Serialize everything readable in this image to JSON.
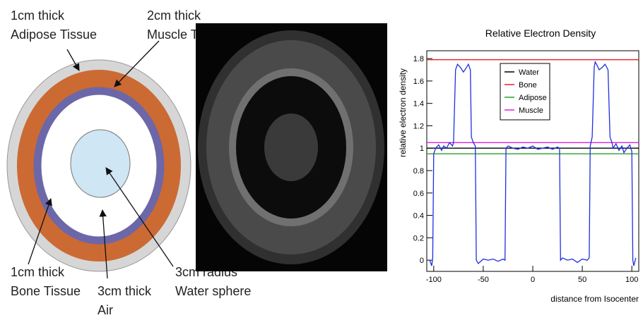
{
  "diagram": {
    "labels": [
      [
        "1cm thick",
        "Adipose Tissue"
      ],
      [
        "2cm thick",
        "Muscle Tissue"
      ],
      [
        "1cm thick",
        "Bone Tissue"
      ],
      [
        "3cm thick",
        "Air"
      ],
      [
        "3cm radius",
        "Water sphere"
      ]
    ]
  },
  "chart_data": {
    "type": "line",
    "title": "Relative Electron Density",
    "x_label": "distance from Isocenter",
    "y_label": "relative electron density",
    "xlim": [
      -107,
      107
    ],
    "ylim": [
      -0.1,
      1.87
    ],
    "xticks": [
      -100,
      -50,
      0,
      50,
      100
    ],
    "yticks": [
      0,
      0.2,
      0.4,
      0.6,
      0.8,
      1,
      1.2,
      1.4,
      1.6,
      1.8
    ],
    "legend": "top-left",
    "series": [
      {
        "name": "Water",
        "color": "#000000",
        "x": [
          -107,
          107
        ],
        "values": [
          1.0,
          1.0
        ]
      },
      {
        "name": "Bone",
        "color": "#e8202a",
        "x": [
          -107,
          107
        ],
        "values": [
          1.79,
          1.79
        ]
      },
      {
        "name": "Adipose",
        "color": "#2ca02c",
        "x": [
          -107,
          107
        ],
        "values": [
          0.95,
          0.95
        ]
      },
      {
        "name": "Muscle",
        "color": "#e020e0",
        "x": [
          -107,
          107
        ],
        "values": [
          1.05,
          1.05
        ]
      },
      {
        "color": "#1f2fe0",
        "x": [
          -104,
          -102,
          -101,
          -100,
          -98,
          -95,
          -92,
          -90,
          -87,
          -84,
          -81,
          -80,
          -78,
          -76,
          -73,
          -70,
          -67,
          -65,
          -63,
          -62,
          -60,
          -58,
          -57,
          -55,
          -50,
          -45,
          -40,
          -35,
          -30,
          -28,
          -27,
          -25,
          -20,
          -15,
          -10,
          -5,
          0,
          5,
          10,
          15,
          20,
          25,
          27,
          28,
          30,
          35,
          40,
          45,
          50,
          55,
          57,
          58,
          60,
          62,
          63,
          65,
          67,
          70,
          73,
          76,
          78,
          80,
          81,
          84,
          87,
          90,
          92,
          95,
          98,
          100,
          101,
          102,
          104
        ],
        "values": [
          0,
          -0.05,
          0.02,
          0.95,
          1.0,
          1.03,
          0.98,
          1.02,
          1.0,
          1.05,
          1.02,
          1.05,
          1.7,
          1.75,
          1.72,
          1.68,
          1.72,
          1.75,
          1.7,
          1.1,
          1.05,
          1.02,
          0.0,
          -0.03,
          0.01,
          0.0,
          0.01,
          -0.01,
          0.01,
          0.0,
          1.0,
          1.02,
          1.0,
          0.99,
          1.01,
          1.0,
          1.02,
          0.99,
          1.0,
          1.01,
          0.99,
          1.01,
          1.0,
          0.0,
          0.02,
          0.0,
          0.01,
          -0.02,
          0.01,
          0.0,
          0.02,
          1.02,
          1.1,
          1.72,
          1.77,
          1.74,
          1.7,
          1.72,
          1.75,
          1.7,
          1.1,
          1.05,
          1.0,
          1.04,
          0.98,
          1.02,
          0.96,
          1.0,
          1.03,
          0.97,
          0.0,
          -0.05,
          0.02
        ]
      }
    ]
  }
}
